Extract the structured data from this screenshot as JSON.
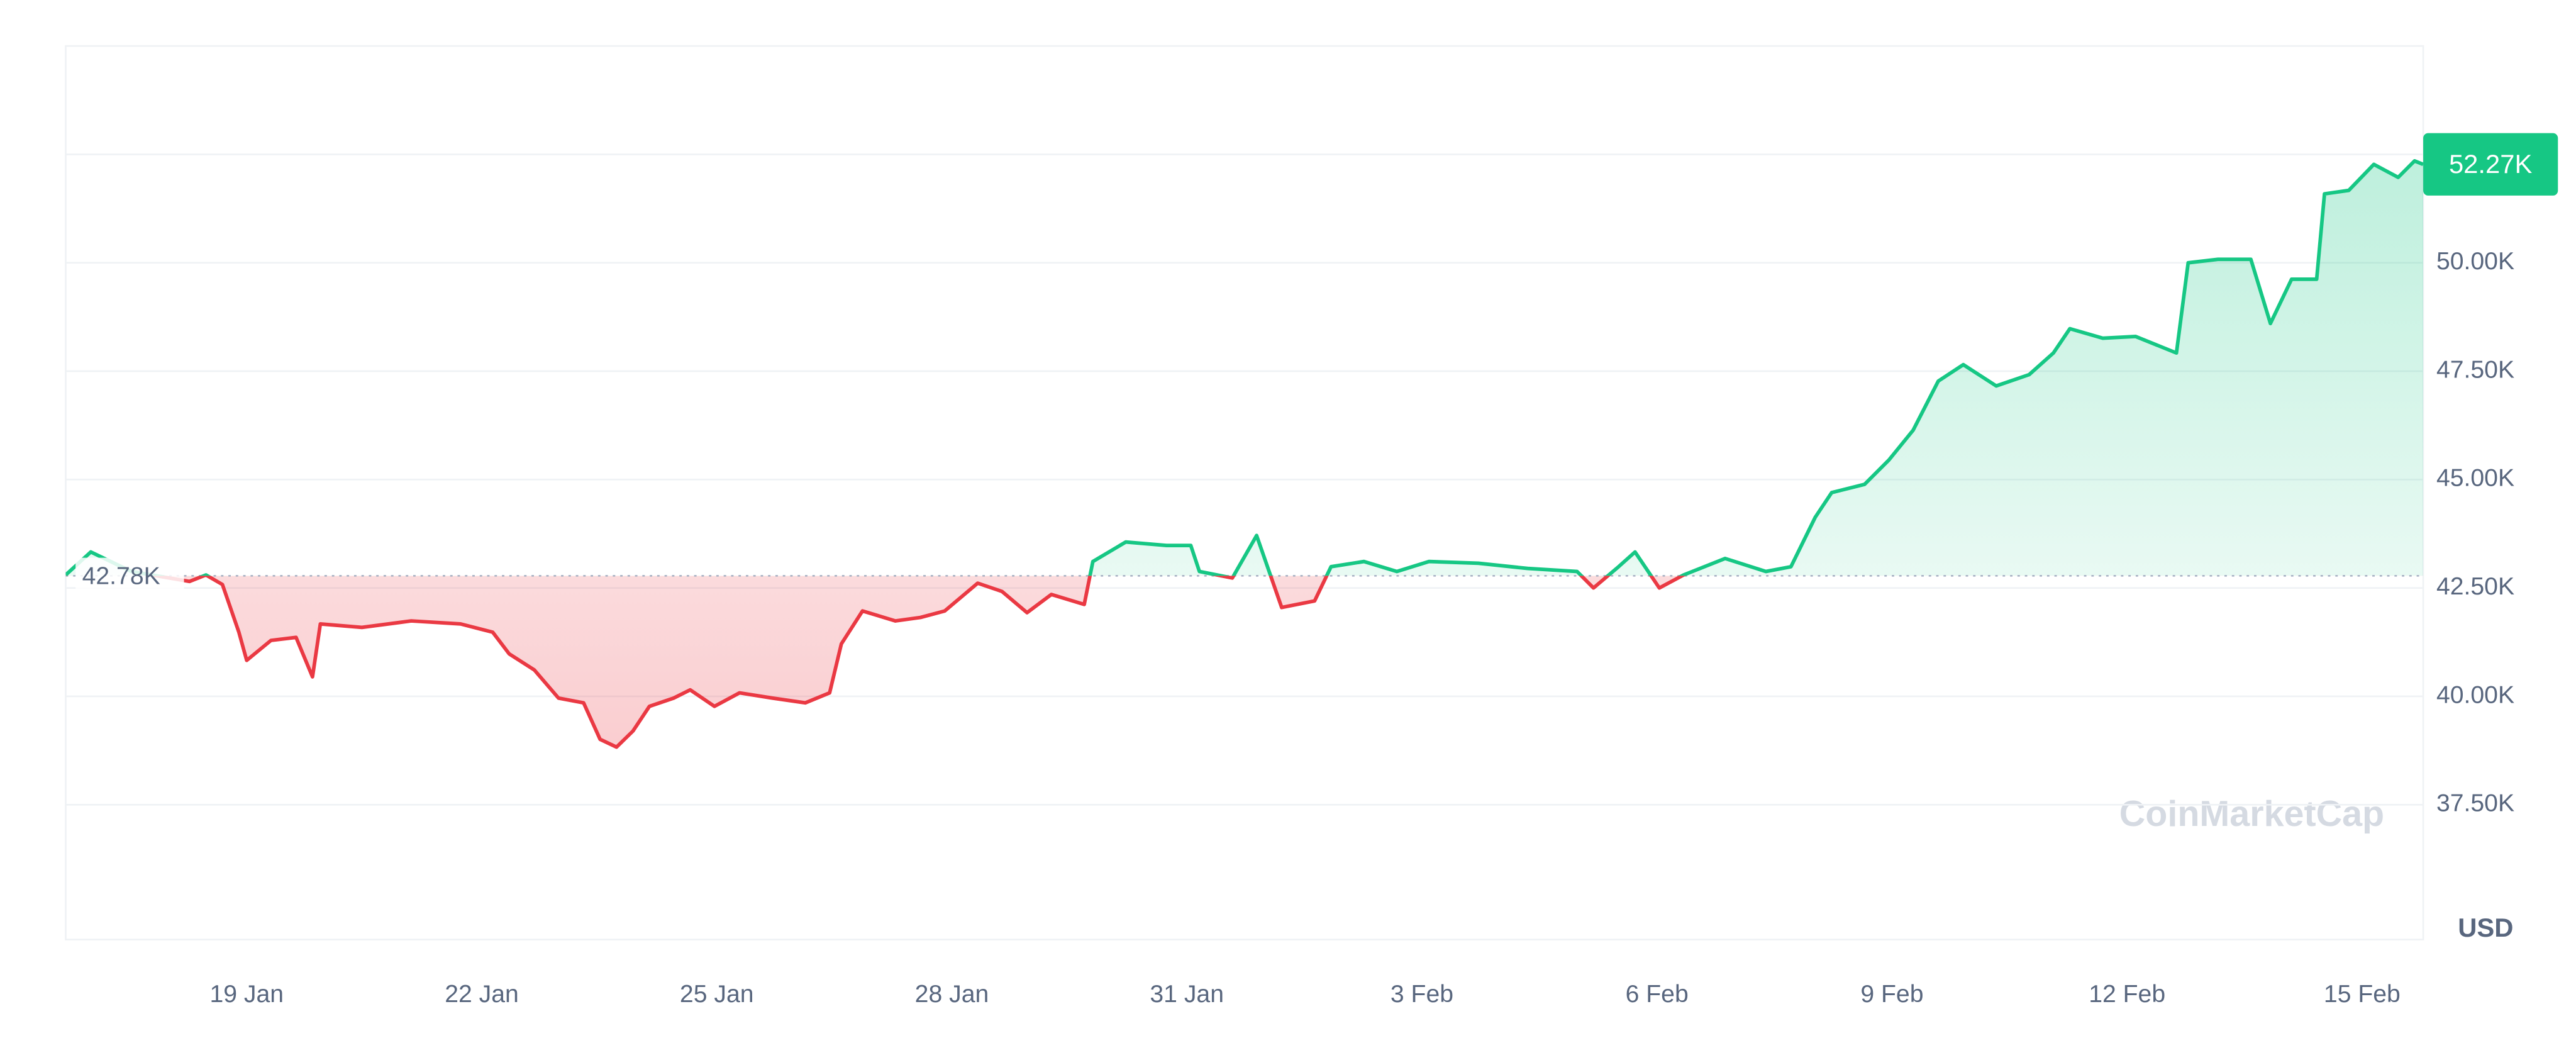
{
  "chart_data": {
    "type": "line",
    "x": [
      16.69,
      17.01,
      17.53,
      18.27,
      18.48,
      18.69,
      18.9,
      19.0,
      19.31,
      19.63,
      19.84,
      19.94,
      20.47,
      21.1,
      21.73,
      22.14,
      22.35,
      22.67,
      22.98,
      23.3,
      23.51,
      23.72,
      23.93,
      24.14,
      24.45,
      24.66,
      24.97,
      25.29,
      25.71,
      26.13,
      26.44,
      26.59,
      26.86,
      27.28,
      27.6,
      27.91,
      28.33,
      28.64,
      28.96,
      29.27,
      29.69,
      29.8,
      30.22,
      30.74,
      31.05,
      31.16,
      31.58,
      31.89,
      32.21,
      32.63,
      32.84,
      33.26,
      33.68,
      34.09,
      34.72,
      35.35,
      35.98,
      36.19,
      36.51,
      36.72,
      37.03,
      37.34,
      37.87,
      38.39,
      38.71,
      39.02,
      39.23,
      39.65,
      39.96,
      40.27,
      40.59,
      40.91,
      41.33,
      41.75,
      42.06,
      42.27,
      42.69,
      43.11,
      43.63,
      43.78,
      44.16,
      44.58,
      44.83,
      45.1,
      45.42,
      45.52,
      45.83,
      46.15,
      46.46,
      46.67,
      46.78
    ],
    "values": [
      42.8,
      43.33,
      42.88,
      42.65,
      42.8,
      42.58,
      41.48,
      40.83,
      41.29,
      41.36,
      40.45,
      41.67,
      41.59,
      41.74,
      41.67,
      41.48,
      40.98,
      40.61,
      39.96,
      39.85,
      39.01,
      38.83,
      39.2,
      39.77,
      39.96,
      40.15,
      39.77,
      40.08,
      39.96,
      39.85,
      40.08,
      41.21,
      41.97,
      41.74,
      41.82,
      41.97,
      42.61,
      42.42,
      41.93,
      42.35,
      42.12,
      43.11,
      43.56,
      43.48,
      43.48,
      42.88,
      42.73,
      43.71,
      42.05,
      42.2,
      42.99,
      43.11,
      42.88,
      43.11,
      43.07,
      42.95,
      42.88,
      42.5,
      42.99,
      43.33,
      42.5,
      42.8,
      43.18,
      42.88,
      42.99,
      44.13,
      44.7,
      44.89,
      45.45,
      46.14,
      47.27,
      47.65,
      47.16,
      47.42,
      47.92,
      48.48,
      48.26,
      48.3,
      47.92,
      50.0,
      50.08,
      50.08,
      48.6,
      49.62,
      49.62,
      51.59,
      51.67,
      52.27,
      51.97,
      52.35,
      52.27
    ],
    "colors": {
      "up": "#16c784",
      "down": "#ea3943"
    },
    "xlim": [
      16.69,
      46.78
    ],
    "xticks": [
      {
        "value": 19,
        "label": "19 Jan"
      },
      {
        "value": 22,
        "label": "22 Jan"
      },
      {
        "value": 25,
        "label": "25 Jan"
      },
      {
        "value": 28,
        "label": "28 Jan"
      },
      {
        "value": 31,
        "label": "31 Jan"
      },
      {
        "value": 34,
        "label": "3 Feb"
      },
      {
        "value": 37,
        "label": "6 Feb"
      },
      {
        "value": 40,
        "label": "9 Feb"
      },
      {
        "value": 43,
        "label": "12 Feb"
      },
      {
        "value": 46,
        "label": "15 Feb"
      }
    ],
    "ylim": [
      34.39,
      55
    ],
    "yticks": [
      {
        "value": 37.5,
        "label": "37.50K"
      },
      {
        "value": 40,
        "label": "40.00K"
      },
      {
        "value": 42.5,
        "label": "42.50K"
      },
      {
        "value": 45,
        "label": "45.00K"
      },
      {
        "value": 47.5,
        "label": "47.50K"
      },
      {
        "value": 50,
        "label": "50.00K"
      },
      {
        "value": 52.5,
        "label": null
      }
    ],
    "grid": true,
    "reference": {
      "value": 42.78,
      "label": "42.78K"
    },
    "current": {
      "value": 52.27,
      "label": "52.27K"
    },
    "currency": "USD",
    "watermark": "CoinMarketCap"
  }
}
